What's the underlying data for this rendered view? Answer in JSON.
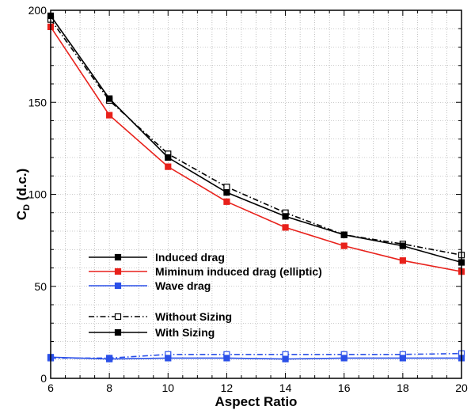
{
  "chart_data": {
    "type": "line",
    "title": "",
    "xlabel": "Aspect Ratio",
    "ylabel_main": "C",
    "ylabel_sub": "D",
    "ylabel_suffix": " (d.c.)",
    "xlim": [
      6,
      20
    ],
    "ylim": [
      0,
      200
    ],
    "xticks": [
      6,
      8,
      10,
      12,
      14,
      16,
      18,
      20
    ],
    "yticks": [
      0,
      50,
      100,
      150,
      200
    ],
    "grid": true,
    "legend_position": "bottom-left",
    "x": [
      6,
      8,
      10,
      12,
      14,
      16,
      18,
      20
    ],
    "series": [
      {
        "name": "Induced drag",
        "variant": "Without Sizing",
        "color": "#000000",
        "dash": "dashdot",
        "marker": "open-square",
        "values": [
          195,
          151,
          122,
          104,
          90,
          78,
          73,
          67
        ]
      },
      {
        "name": "Induced drag",
        "variant": "With Sizing",
        "color": "#000000",
        "dash": "solid",
        "marker": "filled-square",
        "values": [
          197,
          152,
          120,
          101,
          88,
          78,
          72,
          63
        ]
      },
      {
        "name": "Miminum induced drag (elliptic)",
        "variant": "With Sizing",
        "color": "#e8211b",
        "dash": "solid",
        "marker": "filled-square",
        "values": [
          191,
          143,
          115,
          96,
          82,
          72,
          64,
          58
        ]
      },
      {
        "name": "Wave drag",
        "variant": "Without Sizing",
        "color": "#2b50e8",
        "dash": "dashdot",
        "marker": "open-square",
        "values": [
          11,
          11,
          13,
          13,
          13,
          13,
          13,
          13.5
        ]
      },
      {
        "name": "Wave drag",
        "variant": "With Sizing",
        "color": "#2b50e8",
        "dash": "solid",
        "marker": "filled-square",
        "values": [
          11.5,
          10.5,
          11,
          11,
          10.5,
          11,
          11,
          11
        ]
      }
    ],
    "legend": [
      {
        "label": "Induced drag",
        "color": "#000000",
        "dash": "solid",
        "marker": "filled-square"
      },
      {
        "label": "Miminum induced drag (elliptic)",
        "color": "#e8211b",
        "dash": "solid",
        "marker": "filled-square"
      },
      {
        "label": "Wave drag",
        "color": "#2b50e8",
        "dash": "solid",
        "marker": "filled-square"
      },
      {
        "label": "Without Sizing",
        "color": "#000000",
        "dash": "dashdot",
        "marker": "open-square"
      },
      {
        "label": "With Sizing",
        "color": "#000000",
        "dash": "solid",
        "marker": "filled-square"
      }
    ]
  }
}
